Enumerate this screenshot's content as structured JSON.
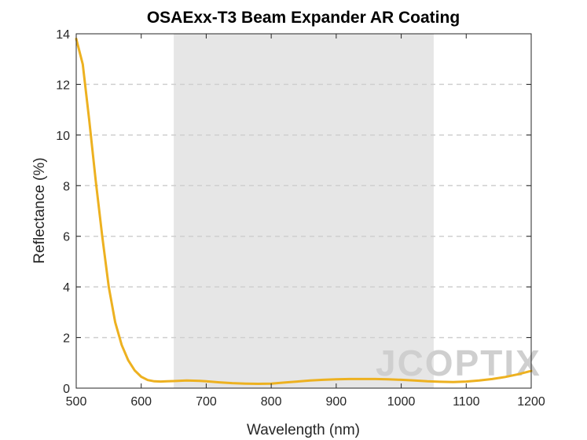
{
  "chart_data": {
    "type": "line",
    "title": "OSAExx-T3 Beam Expander AR Coating",
    "xlabel": "Wavelength (nm)",
    "ylabel": "Reflectance (%)",
    "xlim": [
      500,
      1200
    ],
    "ylim": [
      0,
      14
    ],
    "xticks": [
      500,
      600,
      700,
      800,
      900,
      1000,
      1100,
      1200
    ],
    "yticks": [
      0,
      2,
      4,
      6,
      8,
      10,
      12,
      14
    ],
    "grid": "horizontal dashed",
    "shaded_band": {
      "x_start": 650,
      "x_end": 1050,
      "color": "#e6e6e6"
    },
    "series": [
      {
        "name": "Reflectance",
        "color": "#EDB120",
        "x": [
          500,
          510,
          520,
          530,
          540,
          550,
          560,
          570,
          580,
          590,
          600,
          610,
          620,
          630,
          640,
          650,
          670,
          690,
          700,
          720,
          740,
          760,
          780,
          800,
          820,
          840,
          860,
          880,
          900,
          920,
          940,
          960,
          980,
          1000,
          1020,
          1040,
          1060,
          1080,
          1100,
          1120,
          1140,
          1160,
          1180,
          1200
        ],
        "y": [
          13.8,
          12.8,
          10.6,
          8.2,
          6.0,
          4.0,
          2.6,
          1.7,
          1.1,
          0.7,
          0.45,
          0.32,
          0.27,
          0.26,
          0.27,
          0.28,
          0.3,
          0.29,
          0.27,
          0.23,
          0.2,
          0.18,
          0.17,
          0.18,
          0.22,
          0.26,
          0.3,
          0.33,
          0.35,
          0.36,
          0.36,
          0.36,
          0.35,
          0.33,
          0.3,
          0.27,
          0.25,
          0.24,
          0.26,
          0.3,
          0.36,
          0.44,
          0.55,
          0.68
        ]
      }
    ]
  },
  "watermark": {
    "text": "JCOPTIX"
  }
}
